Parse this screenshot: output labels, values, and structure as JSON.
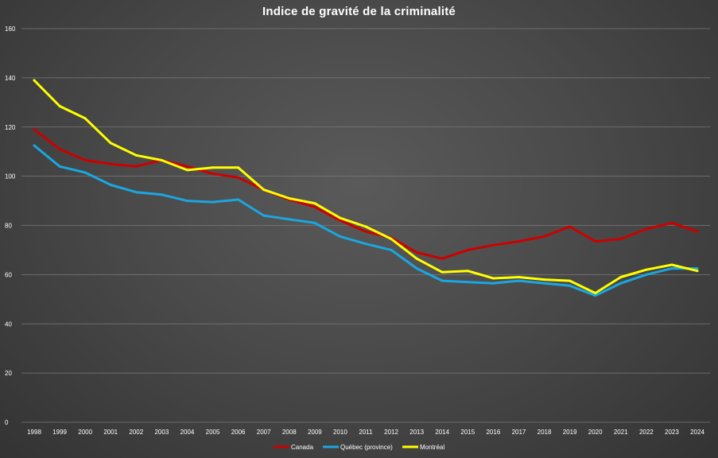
{
  "chart_data": {
    "type": "line",
    "title": "Indice de gravité de la criminalité",
    "xlabel": "",
    "ylabel": "",
    "ylim": [
      0,
      160
    ],
    "yticks": [
      0,
      20,
      40,
      60,
      80,
      100,
      120,
      140,
      160
    ],
    "grid": true,
    "legend_position": "bottom",
    "categories": [
      "1998",
      "1999",
      "2000",
      "2001",
      "2002",
      "2003",
      "2004",
      "2005",
      "2006",
      "2007",
      "2008",
      "2009",
      "2010",
      "2011",
      "2012",
      "2013",
      "2014",
      "2015",
      "2016",
      "2017",
      "2018",
      "2019",
      "2020",
      "2021",
      "2022",
      "2023",
      "2024"
    ],
    "series": [
      {
        "name": "Canada",
        "color": "#cc0000",
        "values": [
          119,
          111,
          106.5,
          105,
          104,
          106.5,
          104,
          101,
          99.5,
          94.5,
          90.5,
          87.5,
          82,
          77.5,
          75,
          69,
          66.5,
          70,
          72,
          73.5,
          75.5,
          79.5,
          73.5,
          74.5,
          78.5,
          81,
          77.5
        ]
      },
      {
        "name": "Québec (province)",
        "color": "#1aa7e0",
        "values": [
          112.5,
          104,
          101.5,
          96.5,
          93.5,
          92.5,
          90,
          89.5,
          90.5,
          84,
          82.5,
          81,
          75.5,
          72.5,
          70,
          62.5,
          57.5,
          57,
          56.5,
          57.5,
          56.5,
          55.5,
          51.5,
          56.5,
          60,
          62.5,
          62.5
        ]
      },
      {
        "name": "Montréal",
        "color": "#ffff00",
        "values": [
          139,
          128.5,
          123.5,
          113.5,
          108.5,
          106.5,
          102.5,
          103.5,
          103.5,
          94.5,
          91,
          89,
          83,
          79.5,
          74.5,
          66.5,
          61,
          61.5,
          58.5,
          59,
          58,
          57.5,
          52.5,
          59,
          62,
          64,
          61.5
        ]
      }
    ]
  }
}
